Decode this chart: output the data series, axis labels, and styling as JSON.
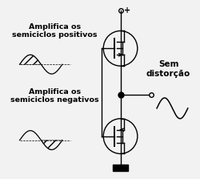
{
  "bg_color": "#f2f2f2",
  "line_color": "#000000",
  "text_amplifica_pos": "Amplifica os\nsemiciclos positivos",
  "text_amplifica_neg": "Amplifica os\nsemiciclos negativos",
  "text_sem": "Sem\ndistorção",
  "plus_label": "+",
  "figsize": [
    2.5,
    2.23
  ],
  "dpi": 100
}
